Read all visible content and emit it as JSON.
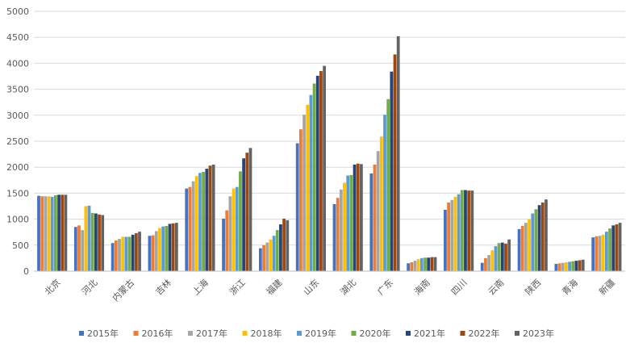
{
  "chart_data": {
    "type": "bar",
    "title": "",
    "xlabel": "",
    "ylabel": "",
    "ylim": [
      0,
      5000
    ],
    "yticks": [
      0,
      500,
      1000,
      1500,
      2000,
      2500,
      3000,
      3500,
      4000,
      4500,
      5000
    ],
    "grid": true,
    "legend_position": "bottom",
    "categories": [
      "北京",
      "河北",
      "内蒙古",
      "吉林",
      "上海",
      "浙江",
      "福建",
      "山东",
      "湖北",
      "广东",
      "海南",
      "四川",
      "云南",
      "陕西",
      "青海",
      "新疆"
    ],
    "colors": [
      "#4472C4",
      "#ED7D31",
      "#A5A5A5",
      "#FFC000",
      "#5B9BD5",
      "#70AD47",
      "#264478",
      "#9E480E",
      "#636363"
    ],
    "series": [
      {
        "name": "2015年",
        "values": [
          1450,
          850,
          540,
          680,
          1590,
          1010,
          440,
          2460,
          1290,
          1880,
          150,
          1180,
          160,
          810,
          140,
          650
        ]
      },
      {
        "name": "2016年",
        "values": [
          1440,
          880,
          590,
          690,
          1620,
          1170,
          500,
          2730,
          1410,
          2050,
          170,
          1320,
          250,
          870,
          150,
          670
        ]
      },
      {
        "name": "2017年",
        "values": [
          1440,
          790,
          620,
          770,
          1730,
          1440,
          550,
          3010,
          1570,
          2310,
          200,
          1370,
          310,
          930,
          160,
          680
        ]
      },
      {
        "name": "2018年",
        "values": [
          1440,
          1250,
          660,
          830,
          1830,
          1590,
          610,
          3200,
          1700,
          2590,
          230,
          1430,
          400,
          1000,
          170,
          700
        ]
      },
      {
        "name": "2019年",
        "values": [
          1430,
          1260,
          660,
          860,
          1890,
          1620,
          680,
          3390,
          1840,
          3010,
          250,
          1480,
          480,
          1110,
          180,
          760
        ]
      },
      {
        "name": "2020年",
        "values": [
          1460,
          1120,
          660,
          870,
          1910,
          1920,
          790,
          3610,
          1850,
          3310,
          260,
          1560,
          540,
          1190,
          190,
          820
        ]
      },
      {
        "name": "2021年",
        "values": [
          1470,
          1110,
          700,
          910,
          1970,
          2170,
          900,
          3760,
          2050,
          3840,
          260,
          1560,
          550,
          1270,
          200,
          880
        ]
      },
      {
        "name": "2022年",
        "values": [
          1470,
          1090,
          730,
          920,
          2030,
          2280,
          1010,
          3850,
          2070,
          4170,
          270,
          1550,
          530,
          1320,
          210,
          900
        ]
      },
      {
        "name": "2023年",
        "values": [
          1470,
          1080,
          760,
          930,
          2050,
          2370,
          980,
          3950,
          2060,
          4520,
          270,
          1550,
          610,
          1380,
          220,
          930
        ]
      }
    ]
  }
}
